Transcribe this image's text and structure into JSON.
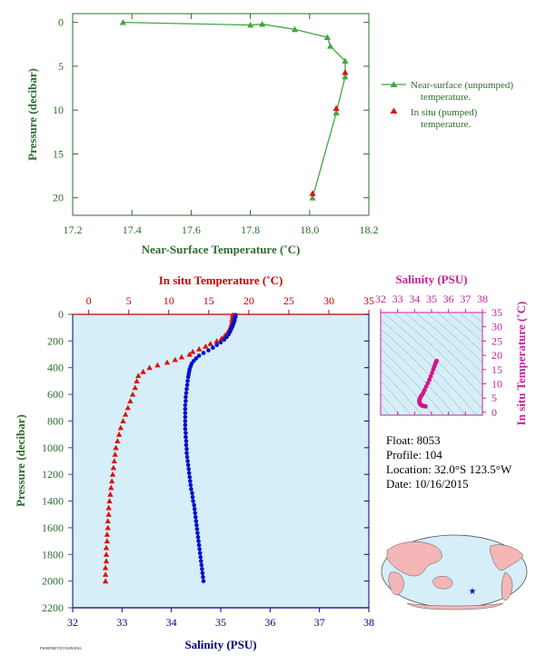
{
  "colors": {
    "green": "#3fa83f",
    "green_text": "#2e6b2e",
    "red": "#dd1111",
    "red_text": "#cc0000",
    "blue": "#0011cc",
    "blue_text": "#000080",
    "magenta": "#d4148c",
    "magenta_text": "#cc1f9a",
    "panel_bg": "#d5eef7"
  },
  "info": {
    "float": "Float:  8053",
    "profile": "Profile:  104",
    "location": "Location:  32.0°S  123.5°W",
    "date": "Date:  10/16/2015"
  },
  "footer_code": "FW0055M.TXT 03/09/2016",
  "chart_data": [
    {
      "type": "line",
      "xlabel": "Near-Surface Temperature (˚C)",
      "ylabel": "Pressure (decibar)",
      "xlim": [
        17.2,
        18.2
      ],
      "ylim": [
        22,
        -1
      ],
      "x_ticks": [
        "17.2",
        "17.4",
        "17.6",
        "17.8",
        "18.0",
        "18.2"
      ],
      "y_ticks": [
        "0",
        "5",
        "10",
        "15",
        "20"
      ],
      "legend_position": "right",
      "series": [
        {
          "name": "Near-surface (unpumped) temperature.",
          "marker": "triangle",
          "points": [
            [
              17.37,
              0.0
            ],
            [
              17.8,
              0.3
            ],
            [
              17.84,
              0.2
            ],
            [
              17.95,
              0.8
            ],
            [
              18.06,
              1.7
            ],
            [
              18.07,
              2.7
            ],
            [
              18.12,
              4.4
            ],
            [
              18.12,
              6.2
            ],
            [
              18.09,
              10.3
            ],
            [
              18.01,
              20.0
            ]
          ]
        },
        {
          "name": "In situ (pumped) temperature.",
          "marker": "triangle",
          "points": [
            [
              18.12,
              5.7
            ],
            [
              18.09,
              9.8
            ],
            [
              18.01,
              19.5
            ]
          ]
        }
      ]
    },
    {
      "type": "scatter",
      "ylabel": "Pressure (decibar)",
      "ylim": [
        2200,
        0
      ],
      "y_ticks": [
        "0",
        "200",
        "400",
        "600",
        "800",
        "1000",
        "1200",
        "1400",
        "1600",
        "1800",
        "2000",
        "2200"
      ],
      "top_axis": {
        "label": "In situ Temperature (˚C)",
        "lim": [
          -2,
          35
        ],
        "ticks": [
          "0",
          "5",
          "10",
          "15",
          "20",
          "25",
          "30",
          "35"
        ]
      },
      "bottom_axis": {
        "label": "Salinity (PSU)",
        "lim": [
          32,
          38
        ],
        "ticks": [
          "32",
          "33",
          "34",
          "35",
          "36",
          "37",
          "38"
        ]
      },
      "series": [
        {
          "name": "In situ Temperature (˚C)",
          "marker": "triangle",
          "points": [
            [
              18.0,
              5
            ],
            [
              18.0,
              20
            ],
            [
              17.9,
              40
            ],
            [
              17.9,
              60
            ],
            [
              17.8,
              80
            ],
            [
              17.7,
              100
            ],
            [
              17.5,
              120
            ],
            [
              17.3,
              140
            ],
            [
              17.0,
              160
            ],
            [
              16.6,
              180
            ],
            [
              16.0,
              200
            ],
            [
              15.2,
              220
            ],
            [
              14.6,
              240
            ],
            [
              13.8,
              260
            ],
            [
              13.0,
              280
            ],
            [
              12.6,
              300
            ],
            [
              11.6,
              320
            ],
            [
              10.8,
              340
            ],
            [
              9.8,
              360
            ],
            [
              8.6,
              380
            ],
            [
              7.6,
              400
            ],
            [
              6.8,
              430
            ],
            [
              6.2,
              460
            ],
            [
              6.0,
              500
            ],
            [
              5.8,
              550
            ],
            [
              5.5,
              600
            ],
            [
              5.2,
              650
            ],
            [
              4.9,
              700
            ],
            [
              4.6,
              750
            ],
            [
              4.3,
              800
            ],
            [
              4.0,
              850
            ],
            [
              3.8,
              900
            ],
            [
              3.6,
              950
            ],
            [
              3.4,
              1000
            ],
            [
              3.3,
              1050
            ],
            [
              3.2,
              1100
            ],
            [
              3.1,
              1150
            ],
            [
              3.0,
              1200
            ],
            [
              2.9,
              1250
            ],
            [
              2.8,
              1300
            ],
            [
              2.7,
              1350
            ],
            [
              2.6,
              1400
            ],
            [
              2.5,
              1450
            ],
            [
              2.5,
              1500
            ],
            [
              2.4,
              1550
            ],
            [
              2.4,
              1600
            ],
            [
              2.3,
              1650
            ],
            [
              2.3,
              1700
            ],
            [
              2.2,
              1750
            ],
            [
              2.2,
              1800
            ],
            [
              2.2,
              1850
            ],
            [
              2.1,
              1900
            ],
            [
              2.1,
              1950
            ],
            [
              2.1,
              2000
            ]
          ]
        },
        {
          "name": "Salinity (PSU)",
          "marker": "circle",
          "points": [
            [
              35.3,
              5
            ],
            [
              35.3,
              15
            ],
            [
              35.29,
              25
            ],
            [
              35.28,
              35
            ],
            [
              35.28,
              45
            ],
            [
              35.27,
              55
            ],
            [
              35.26,
              65
            ],
            [
              35.25,
              75
            ],
            [
              35.24,
              85
            ],
            [
              35.23,
              95
            ],
            [
              35.21,
              110
            ],
            [
              35.19,
              130
            ],
            [
              35.16,
              150
            ],
            [
              35.12,
              170
            ],
            [
              35.07,
              190
            ],
            [
              35.0,
              210
            ],
            [
              34.92,
              230
            ],
            [
              34.84,
              250
            ],
            [
              34.75,
              270
            ],
            [
              34.65,
              290
            ],
            [
              34.56,
              310
            ],
            [
              34.5,
              330
            ],
            [
              34.45,
              350
            ],
            [
              34.41,
              370
            ],
            [
              34.39,
              390
            ],
            [
              34.37,
              410
            ],
            [
              34.36,
              430
            ],
            [
              34.35,
              450
            ],
            [
              34.34,
              470
            ],
            [
              34.33,
              500
            ],
            [
              34.32,
              530
            ],
            [
              34.31,
              560
            ],
            [
              34.3,
              590
            ],
            [
              34.29,
              620
            ],
            [
              34.29,
              650
            ],
            [
              34.28,
              680
            ],
            [
              34.28,
              710
            ],
            [
              34.28,
              740
            ],
            [
              34.28,
              770
            ],
            [
              34.28,
              800
            ],
            [
              34.28,
              830
            ],
            [
              34.28,
              860
            ],
            [
              34.29,
              890
            ],
            [
              34.29,
              920
            ],
            [
              34.3,
              950
            ],
            [
              34.3,
              980
            ],
            [
              34.31,
              1010
            ],
            [
              34.31,
              1040
            ],
            [
              34.32,
              1070
            ],
            [
              34.33,
              1100
            ],
            [
              34.34,
              1130
            ],
            [
              34.35,
              1160
            ],
            [
              34.36,
              1190
            ],
            [
              34.37,
              1220
            ],
            [
              34.38,
              1250
            ],
            [
              34.39,
              1280
            ],
            [
              34.4,
              1310
            ],
            [
              34.42,
              1340
            ],
            [
              34.43,
              1370
            ],
            [
              34.44,
              1400
            ],
            [
              34.46,
              1430
            ],
            [
              34.47,
              1460
            ],
            [
              34.48,
              1490
            ],
            [
              34.49,
              1520
            ],
            [
              34.5,
              1550
            ],
            [
              34.51,
              1580
            ],
            [
              34.52,
              1610
            ],
            [
              34.53,
              1640
            ],
            [
              34.54,
              1670
            ],
            [
              34.55,
              1700
            ],
            [
              34.56,
              1730
            ],
            [
              34.57,
              1760
            ],
            [
              34.58,
              1790
            ],
            [
              34.59,
              1820
            ],
            [
              34.6,
              1850
            ],
            [
              34.61,
              1880
            ],
            [
              34.62,
              1910
            ],
            [
              34.63,
              1940
            ],
            [
              34.64,
              1970
            ],
            [
              34.65,
              2000
            ]
          ]
        }
      ]
    },
    {
      "type": "scatter",
      "xlabel": "Salinity (PSU)",
      "ylabel": "In situ Temperature (˚C)",
      "xlim": [
        32,
        38
      ],
      "ylim": [
        -1,
        35
      ],
      "x_ticks": [
        "32",
        "33",
        "34",
        "35",
        "36",
        "37",
        "38"
      ],
      "y_ticks": [
        "0",
        "5",
        "10",
        "15",
        "20",
        "25",
        "30",
        "35"
      ],
      "series": [
        {
          "name": "T-S",
          "marker": "circle",
          "points": [
            [
              35.3,
              18.0
            ],
            [
              35.28,
              17.8
            ],
            [
              35.25,
              17.4
            ],
            [
              35.21,
              16.8
            ],
            [
              35.16,
              16.0
            ],
            [
              35.1,
              15.0
            ],
            [
              35.03,
              13.8
            ],
            [
              34.95,
              12.6
            ],
            [
              34.87,
              11.4
            ],
            [
              34.78,
              10.2
            ],
            [
              34.68,
              9.0
            ],
            [
              34.59,
              7.8
            ],
            [
              34.51,
              6.8
            ],
            [
              34.45,
              6.2
            ],
            [
              34.4,
              5.8
            ],
            [
              34.36,
              5.4
            ],
            [
              34.33,
              5.0
            ],
            [
              34.3,
              4.6
            ],
            [
              34.28,
              4.2
            ],
            [
              34.28,
              3.8
            ],
            [
              34.29,
              3.4
            ],
            [
              34.31,
              3.1
            ],
            [
              34.34,
              2.8
            ],
            [
              34.38,
              2.6
            ],
            [
              34.43,
              2.4
            ],
            [
              34.48,
              2.3
            ],
            [
              34.53,
              2.2
            ],
            [
              34.58,
              2.15
            ],
            [
              34.63,
              2.1
            ],
            [
              34.65,
              2.1
            ]
          ]
        }
      ]
    }
  ]
}
